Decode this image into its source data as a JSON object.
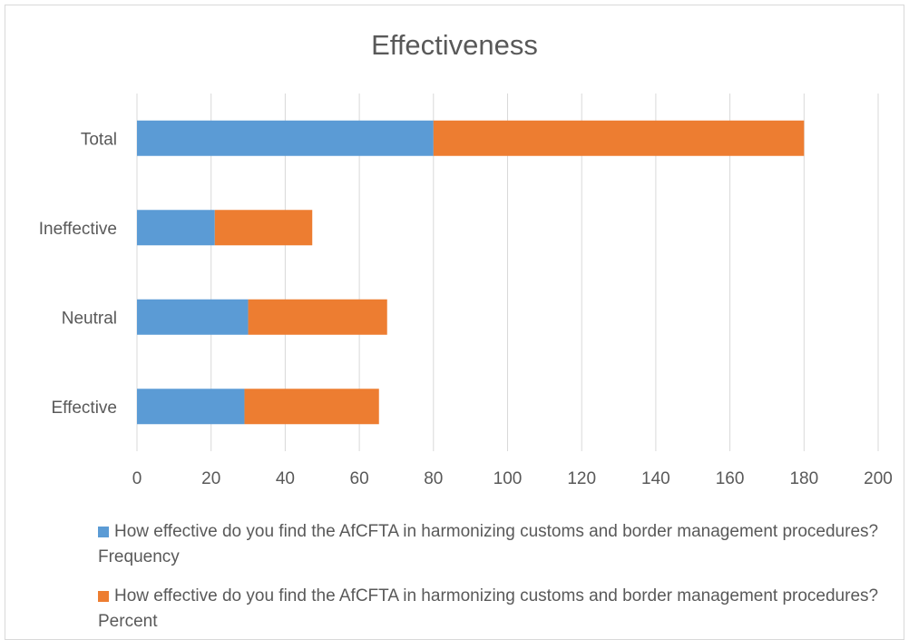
{
  "chart_data": {
    "type": "bar",
    "orientation": "horizontal",
    "stacked": true,
    "title": "Effectiveness",
    "categories": [
      "Effective",
      "Neutral",
      "Ineffective",
      "Total"
    ],
    "series": [
      {
        "name": "How effective do you find the AfCFTA in harmonizing customs and border management procedures? Frequency",
        "color": "#5b9bd5",
        "values": [
          29,
          30,
          21,
          80
        ]
      },
      {
        "name": "How effective do you find the AfCFTA in harmonizing customs and border management procedures? Percent",
        "color": "#ed7d31",
        "values": [
          36.3,
          37.5,
          26.3,
          100
        ]
      }
    ],
    "xlim": [
      0,
      200
    ],
    "xticks": [
      "0",
      "20",
      "40",
      "60",
      "80",
      "100",
      "120",
      "140",
      "160",
      "180",
      "200"
    ],
    "grid": true,
    "legend_position": "bottom"
  }
}
